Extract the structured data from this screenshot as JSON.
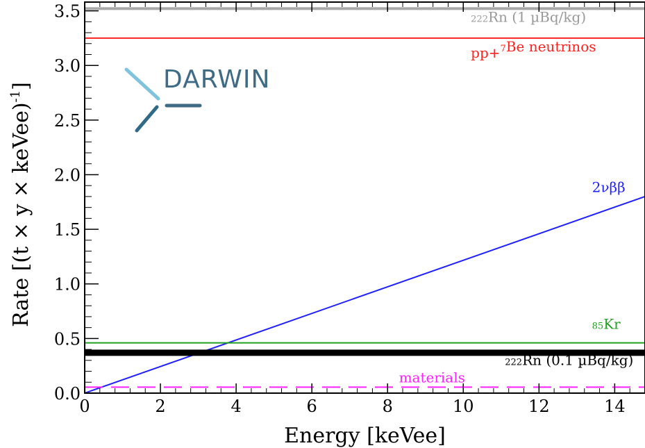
{
  "logo": {
    "text": "DARWIN"
  },
  "chart_data": {
    "type": "line",
    "title": "",
    "xlabel": "Energy [keVee]",
    "ylabel_parts": [
      "Rate [(t × y × keVee)",
      "-1",
      "]"
    ],
    "xlim": [
      0,
      14.8
    ],
    "ylim": [
      0,
      3.58
    ],
    "x_ticks": [
      0,
      2,
      4,
      6,
      8,
      10,
      12,
      14
    ],
    "x_tick_labels": [
      "0",
      "2",
      "4",
      "6",
      "8",
      "10",
      "12",
      "14"
    ],
    "y_ticks": [
      0,
      0.5,
      1.0,
      1.5,
      2.0,
      2.5,
      3.0,
      3.5
    ],
    "y_tick_labels": [
      "0.0",
      "0.5",
      "1.0",
      "1.5",
      "2.0",
      "2.5",
      "3.0",
      "3.5"
    ],
    "grid": false,
    "series": [
      {
        "name_sup": "222",
        "name": "Rn (1 µBq/kg)",
        "x": [
          0,
          14.8
        ],
        "y": [
          3.52,
          3.52
        ],
        "color": "#a8a8a8",
        "label_x": 10.2,
        "label_y": 3.34
      },
      {
        "name": "pp+",
        "name_sup": "7",
        "name_suffix": "Be neutrinos",
        "x": [
          0,
          14.8
        ],
        "y": [
          3.25,
          3.25
        ],
        "color": "#ff2020",
        "label_x": 10.2,
        "label_y": 3.07
      },
      {
        "name": "2νββ",
        "x": [
          0,
          14.8
        ],
        "y": [
          0.0,
          1.8
        ],
        "color": "#2020ff",
        "label_x": 13.4,
        "label_y": 1.84
      },
      {
        "name_sup": "85",
        "name": "Kr",
        "x": [
          0,
          14.8
        ],
        "y": [
          0.46,
          0.46
        ],
        "color": "#20a020",
        "label_x": 13.4,
        "label_y": 0.53
      },
      {
        "name_sup": "222",
        "name": "Rn (0.1 µBq/kg)",
        "x": [
          0,
          14.8
        ],
        "y": [
          0.37,
          0.37
        ],
        "color": "#000000",
        "label_x": 11.1,
        "label_y": 0.2
      },
      {
        "name": "materials",
        "x": [
          0,
          14.8
        ],
        "y": [
          0.055,
          0.055
        ],
        "color": "#ff20ff",
        "dashed": true,
        "label_x": 8.3,
        "label_y": 0.1
      }
    ]
  }
}
